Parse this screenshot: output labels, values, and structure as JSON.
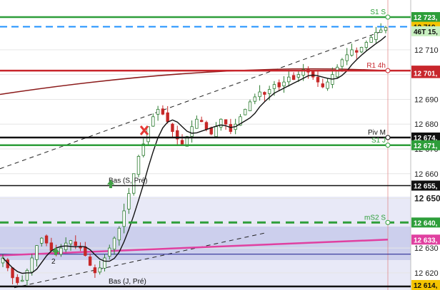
{
  "chart_data": {
    "type": "candlestick",
    "ylim": [
      12614.5,
      12725.5
    ],
    "price_axis": {
      "ticks": [
        "12 710",
        "12 700",
        "12 690",
        "12 680",
        "12 670",
        "12 660",
        "12 650",
        "12 640",
        "12 630",
        "12 620"
      ],
      "tick_values": [
        12710,
        12700,
        12690,
        12680,
        12670,
        12660,
        12650,
        12640,
        12630,
        12620
      ],
      "bold_tick": "12 650",
      "price_tags": [
        {
          "text": "12 723,",
          "color": "#2e9e3a",
          "value": 12723.2
        },
        {
          "text": "12 719,",
          "color": "#f5c400",
          "value": 12719.3
        },
        {
          "text": "46T 15,",
          "color": "#c8f0c0",
          "value": 12717.5
        },
        {
          "text": "12 701,",
          "color": "#c8262c",
          "value": 12701.6
        },
        {
          "text": "12 701,",
          "color": "#c8262c",
          "value": 12700.6
        },
        {
          "text": "12 674,",
          "color": "#111111",
          "value": 12674.6
        },
        {
          "text": "12 671,",
          "color": "#2e9e3a",
          "value": 12671.5
        },
        {
          "text": "12 655,",
          "color": "#111111",
          "value": 12655.2
        },
        {
          "text": "12 640,",
          "color": "#2e9e3a",
          "value": 12640.3
        },
        {
          "text": "12 633,",
          "color": "#e040a0",
          "value": 12633.4
        },
        {
          "text": "12 614,",
          "color": "#f5c400",
          "value": 12614.5
        }
      ]
    },
    "levels": [
      {
        "label": "S1 S",
        "value": 12723.2,
        "color": "#2e9e3a"
      },
      {
        "label": "R1 4h",
        "value": 12701.6,
        "color": "#c8262c"
      },
      {
        "label": "Piv M",
        "value": 12674.6,
        "color": "#111111"
      },
      {
        "label": "S1 J",
        "value": 12671.5,
        "color": "#2e9e3a"
      },
      {
        "label": "Bas (S, Pré)",
        "value": 12655.2,
        "color": "#111111"
      },
      {
        "label": "mS2 S",
        "value": 12640.3,
        "color": "#2e9e3a"
      },
      {
        "label": "Bas (J, Pré)",
        "value": 12614.5,
        "color": "#111111"
      }
    ],
    "annotations": [
      {
        "text": "2"
      }
    ],
    "closes": [
      12626,
      12622,
      12618,
      12616,
      12617,
      12621,
      12626,
      12631,
      12634,
      12632,
      12629,
      12628,
      12630,
      12632,
      12633,
      12631,
      12630,
      12627,
      12623,
      12620,
      12622,
      12626,
      12630,
      12634,
      12638,
      12645,
      12652,
      12660,
      12667,
      12672,
      12679,
      12683,
      12686,
      12684,
      12681,
      12677,
      12674,
      12672,
      12675,
      12679,
      12682,
      12681,
      12678,
      12676,
      12679,
      12682,
      12680,
      12677,
      12680,
      12683,
      12686,
      12689,
      12691,
      12693,
      12692,
      12694,
      12696,
      12695,
      12697,
      12699,
      12698,
      12700,
      12702,
      12701,
      12699,
      12697,
      12695,
      12697,
      12700,
      12703,
      12706,
      12708,
      12710,
      12709,
      12711,
      12713,
      12715,
      12717,
      12718,
      12719
    ]
  }
}
